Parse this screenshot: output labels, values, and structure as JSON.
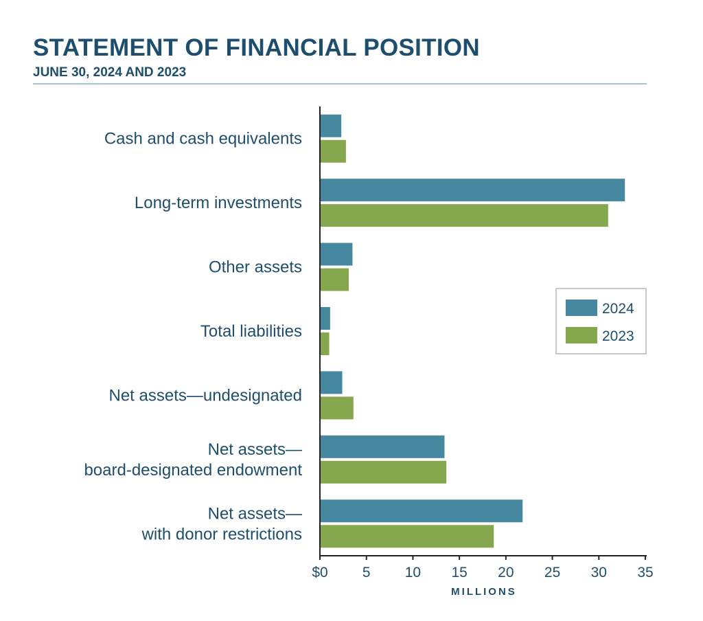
{
  "title": "STATEMENT OF FINANCIAL POSITION",
  "subtitle": "JUNE 30, 2024 AND 2023",
  "colors": {
    "series_2024": "#4688a0",
    "series_2023": "#85a84e",
    "text": "#1d4e6e",
    "axis": "#222222"
  },
  "chart_data": {
    "type": "bar",
    "orientation": "horizontal",
    "categories": [
      [
        "Cash and cash equivalents"
      ],
      [
        "Long-term investments"
      ],
      [
        "Other assets"
      ],
      [
        "Total liabilities"
      ],
      [
        "Net assets—undesignated"
      ],
      [
        "Net assets—",
        "board-designated endowment"
      ],
      [
        "Net assets—",
        "with donor restrictions"
      ]
    ],
    "series": [
      {
        "name": "2024",
        "values": [
          2.3,
          32.8,
          3.5,
          1.1,
          2.4,
          13.4,
          21.8
        ]
      },
      {
        "name": "2023",
        "values": [
          2.8,
          31.0,
          3.1,
          1.0,
          3.6,
          13.6,
          18.7
        ]
      }
    ],
    "xlim": [
      0,
      35
    ],
    "xticks": [
      0,
      5,
      10,
      15,
      20,
      25,
      30,
      35
    ],
    "xtick_labels": [
      "$0",
      "5",
      "10",
      "15",
      "20",
      "25",
      "30",
      "35"
    ],
    "xlabel": "MILLIONS",
    "legend_position": "right",
    "grid": false
  }
}
